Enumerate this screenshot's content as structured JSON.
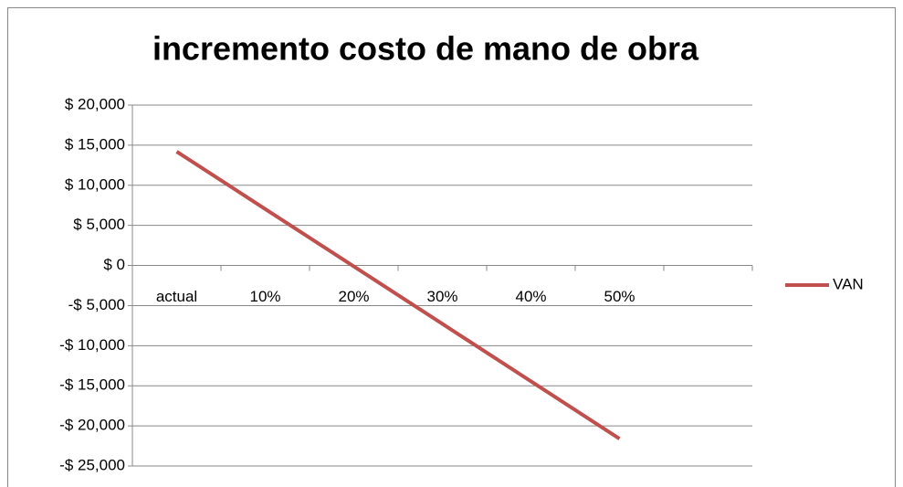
{
  "chart_data": {
    "type": "line",
    "title": "incremento costo de mano de obra",
    "categories": [
      "actual",
      "10%",
      "20%",
      "30%",
      "40%",
      "50%",
      null
    ],
    "series": [
      {
        "name": "VAN",
        "color": "#c0504d",
        "values": [
          14200,
          7040,
          -120,
          -7280,
          -14440,
          -21600,
          null
        ]
      }
    ],
    "ylim": [
      -25000,
      20000
    ],
    "yticks": [
      {
        "value": -25000,
        "label": "-$ 25,000"
      },
      {
        "value": -20000,
        "label": "-$ 20,000"
      },
      {
        "value": -15000,
        "label": "-$ 15,000"
      },
      {
        "value": -10000,
        "label": "-$ 10,000"
      },
      {
        "value": -5000,
        "label": "-$ 5,000"
      },
      {
        "value": 0,
        "label": "$ 0"
      },
      {
        "value": 5000,
        "label": "$ 5,000"
      },
      {
        "value": 10000,
        "label": "$ 10,000"
      },
      {
        "value": 15000,
        "label": "$ 15,000"
      },
      {
        "value": 20000,
        "label": "$ 20,000"
      }
    ],
    "grid": true,
    "legend": "right"
  }
}
